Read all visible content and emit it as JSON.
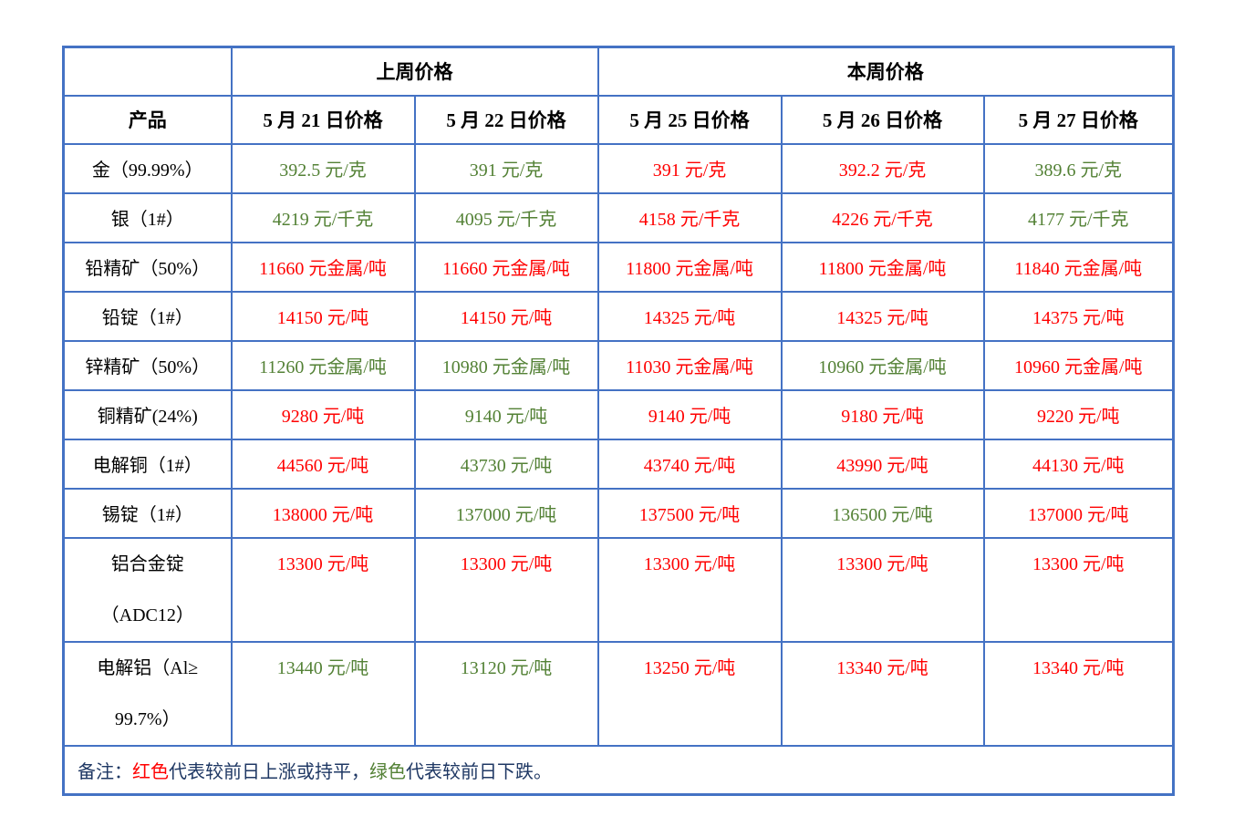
{
  "colors": {
    "border_blue": "#4472C4",
    "up_red": "#FF0000",
    "down_green": "#538135",
    "note_navy": "#1F3864"
  },
  "table": {
    "group_headers": {
      "last_week": "上周价格",
      "this_week": "本周价格"
    },
    "column_headers": [
      "产品",
      "5 月 21 日价格",
      "5 月 22 日价格",
      "5 月 25 日价格",
      "5 月 26 日价格",
      "5 月 27 日价格"
    ],
    "rows": [
      {
        "product": "金（99.99%）",
        "tall": false,
        "values": [
          {
            "text": "392.5 元/克",
            "trend": "down"
          },
          {
            "text": "391 元/克",
            "trend": "down"
          },
          {
            "text": "391 元/克",
            "trend": "up"
          },
          {
            "text": "392.2 元/克",
            "trend": "up"
          },
          {
            "text": "389.6 元/克",
            "trend": "down"
          }
        ]
      },
      {
        "product": "银（1#）",
        "tall": false,
        "values": [
          {
            "text": "4219 元/千克",
            "trend": "down"
          },
          {
            "text": "4095 元/千克",
            "trend": "down"
          },
          {
            "text": "4158 元/千克",
            "trend": "up"
          },
          {
            "text": "4226 元/千克",
            "trend": "up"
          },
          {
            "text": "4177 元/千克",
            "trend": "down"
          }
        ]
      },
      {
        "product": "铅精矿（50%）",
        "tall": false,
        "values": [
          {
            "text": "11660 元金属/吨",
            "trend": "up"
          },
          {
            "text": "11660 元金属/吨",
            "trend": "up"
          },
          {
            "text": "11800 元金属/吨",
            "trend": "up"
          },
          {
            "text": "11800 元金属/吨",
            "trend": "up"
          },
          {
            "text": "11840 元金属/吨",
            "trend": "up"
          }
        ]
      },
      {
        "product": "铅锭（1#）",
        "tall": false,
        "values": [
          {
            "text": "14150 元/吨",
            "trend": "up"
          },
          {
            "text": "14150 元/吨",
            "trend": "up"
          },
          {
            "text": "14325 元/吨",
            "trend": "up"
          },
          {
            "text": "14325 元/吨",
            "trend": "up"
          },
          {
            "text": "14375 元/吨",
            "trend": "up"
          }
        ]
      },
      {
        "product": "锌精矿（50%）",
        "tall": false,
        "values": [
          {
            "text": "11260 元金属/吨",
            "trend": "down"
          },
          {
            "text": "10980 元金属/吨",
            "trend": "down"
          },
          {
            "text": "11030 元金属/吨",
            "trend": "up"
          },
          {
            "text": "10960 元金属/吨",
            "trend": "down"
          },
          {
            "text": "10960 元金属/吨",
            "trend": "up"
          }
        ]
      },
      {
        "product": "铜精矿(24%)",
        "tall": false,
        "values": [
          {
            "text": "9280 元/吨",
            "trend": "up"
          },
          {
            "text": "9140 元/吨",
            "trend": "down"
          },
          {
            "text": "9140 元/吨",
            "trend": "up"
          },
          {
            "text": "9180 元/吨",
            "trend": "up"
          },
          {
            "text": "9220 元/吨",
            "trend": "up"
          }
        ]
      },
      {
        "product": "电解铜（1#）",
        "tall": false,
        "values": [
          {
            "text": "44560 元/吨",
            "trend": "up"
          },
          {
            "text": "43730 元/吨",
            "trend": "down"
          },
          {
            "text": "43740 元/吨",
            "trend": "up"
          },
          {
            "text": "43990 元/吨",
            "trend": "up"
          },
          {
            "text": "44130 元/吨",
            "trend": "up"
          }
        ]
      },
      {
        "product": "锡锭（1#）",
        "tall": false,
        "values": [
          {
            "text": "138000 元/吨",
            "trend": "up"
          },
          {
            "text": "137000 元/吨",
            "trend": "down"
          },
          {
            "text": "137500 元/吨",
            "trend": "up"
          },
          {
            "text": "136500 元/吨",
            "trend": "down"
          },
          {
            "text": "137000 元/吨",
            "trend": "up"
          }
        ]
      },
      {
        "product": "铝合金锭\n（ADC12）",
        "tall": true,
        "values": [
          {
            "text": "13300 元/吨",
            "trend": "up"
          },
          {
            "text": "13300 元/吨",
            "trend": "up"
          },
          {
            "text": "13300 元/吨",
            "trend": "up"
          },
          {
            "text": "13300 元/吨",
            "trend": "up"
          },
          {
            "text": "13300 元/吨",
            "trend": "up"
          }
        ]
      },
      {
        "product": "电解铝（Al≥\n99.7%）",
        "tall": true,
        "values": [
          {
            "text": "13440 元/吨",
            "trend": "down"
          },
          {
            "text": "13120 元/吨",
            "trend": "down"
          },
          {
            "text": "13250 元/吨",
            "trend": "up"
          },
          {
            "text": "13340 元/吨",
            "trend": "up"
          },
          {
            "text": "13340 元/吨",
            "trend": "up"
          }
        ]
      }
    ],
    "note_segments": [
      {
        "text": "备注：",
        "color": "navy"
      },
      {
        "text": "红色",
        "color": "red"
      },
      {
        "text": "代表较前日上涨或持平，",
        "color": "navy"
      },
      {
        "text": "绿色",
        "color": "green"
      },
      {
        "text": "代表较前日下跌。",
        "color": "navy"
      }
    ]
  }
}
